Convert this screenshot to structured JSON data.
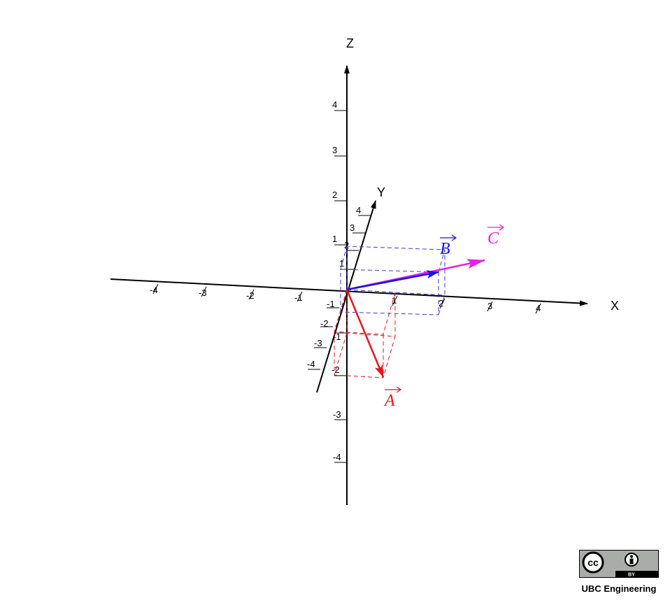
{
  "axes": {
    "x_label": "X",
    "y_label": "Y",
    "z_label": "Z",
    "x_ticks": [
      "-4",
      "-3",
      "-2",
      "-1",
      "1",
      "2",
      "3",
      "4"
    ],
    "y_ticks": [
      "-4",
      "-3",
      "-2",
      "-1",
      "1",
      "2",
      "3",
      "4"
    ],
    "z_ticks": [
      "-4",
      "-3",
      "-2",
      "-1",
      "1",
      "2",
      "3",
      "4"
    ]
  },
  "vectors": {
    "A": {
      "label": "A",
      "color": "#e8141b"
    },
    "B": {
      "label": "B",
      "color": "#1a14e0"
    },
    "C": {
      "label": "C",
      "color": "#e61ee6"
    }
  },
  "badge": {
    "cc_text": "cc",
    "by_text": "BY",
    "caption": "UBC Engineering"
  }
}
